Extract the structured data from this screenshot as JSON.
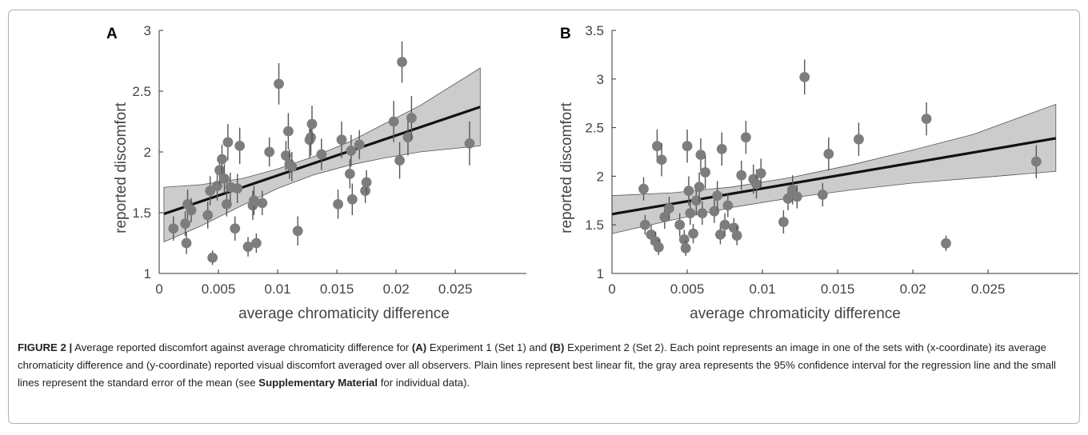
{
  "caption": {
    "label": "FIGURE 2 |",
    "p1": " Average reported discomfort against average chromaticity difference for ",
    "b1": "(A)",
    "p2": " Experiment 1 (Set 1) and ",
    "b2": "(B)",
    "p3": " Experiment 2 (Set 2). Each point represents an image in one of the sets with (x-coordinate) its average chromaticity difference and (y-coordinate) reported visual discomfort averaged over all observers. Plain lines represent best linear fit, the gray area represents the 95% confidence interval for the regression line and the small lines represent the standard error of the mean (see ",
    "b3": "Supplementary Material",
    "p4": " for individual data)."
  },
  "colors": {
    "point": "#7d7d7d",
    "band": "#cccccc",
    "fit": "#111111",
    "errbar": "#555555",
    "frame": "#9fb7c4"
  },
  "chart_data": [
    {
      "panel_label": "A",
      "type": "scatter",
      "xlabel": "average chromaticity difference",
      "ylabel": "reported discomfort",
      "xlim": [
        0,
        0.031
      ],
      "ylim": [
        1,
        3
      ],
      "xticks": [
        "0",
        "0.005",
        "0.01",
        "0.015",
        "0.02",
        "0.025"
      ],
      "xtick_values": [
        0,
        0.005,
        0.01,
        0.015,
        0.02,
        0.025
      ],
      "yticks": [
        "1",
        "1.5",
        "2",
        "2.5",
        "3"
      ],
      "ytick_values": [
        1,
        1.5,
        2,
        2.5,
        3
      ],
      "fit": {
        "x": [
          0.0004,
          0.0271
        ],
        "y": [
          1.49,
          2.37
        ]
      },
      "ci_band": {
        "x": [
          0.0004,
          0.0035,
          0.007,
          0.01,
          0.013,
          0.016,
          0.019,
          0.022,
          0.0271
        ],
        "lower": [
          1.26,
          1.39,
          1.56,
          1.7,
          1.81,
          1.89,
          1.95,
          2.0,
          2.05
        ],
        "upper": [
          1.71,
          1.73,
          1.78,
          1.86,
          1.96,
          2.08,
          2.23,
          2.38,
          2.69
        ]
      },
      "points": {
        "x": [
          0.0012,
          0.0022,
          0.0023,
          0.0024,
          0.0027,
          0.0041,
          0.0043,
          0.0045,
          0.0049,
          0.0051,
          0.0053,
          0.0055,
          0.0057,
          0.0058,
          0.006,
          0.0064,
          0.0066,
          0.0068,
          0.0075,
          0.0079,
          0.008,
          0.0082,
          0.0087,
          0.0093,
          0.0101,
          0.0107,
          0.0109,
          0.011,
          0.0112,
          0.0117,
          0.0127,
          0.0128,
          0.0129,
          0.0137,
          0.0151,
          0.0154,
          0.0161,
          0.0162,
          0.0163,
          0.0169,
          0.0174,
          0.0175,
          0.0198,
          0.0203,
          0.0205,
          0.021,
          0.0213,
          0.0262
        ],
        "y": [
          1.37,
          1.41,
          1.25,
          1.57,
          1.52,
          1.48,
          1.68,
          1.13,
          1.72,
          1.85,
          1.94,
          1.78,
          1.57,
          2.08,
          1.71,
          1.37,
          1.7,
          2.05,
          1.22,
          1.56,
          1.6,
          1.25,
          1.58,
          2.0,
          2.56,
          1.97,
          2.17,
          1.9,
          1.88,
          1.35,
          2.1,
          2.12,
          2.23,
          1.98,
          1.57,
          2.1,
          1.82,
          2.01,
          1.61,
          2.06,
          1.68,
          1.75,
          2.25,
          1.93,
          2.74,
          2.12,
          2.28,
          2.07
        ],
        "err": [
          0.1,
          0.1,
          0.09,
          0.12,
          0.1,
          0.11,
          0.12,
          0.06,
          0.12,
          0.12,
          0.12,
          0.12,
          0.1,
          0.15,
          0.12,
          0.1,
          0.12,
          0.15,
          0.08,
          0.12,
          0.12,
          0.08,
          0.1,
          0.12,
          0.17,
          0.12,
          0.15,
          0.12,
          0.12,
          0.12,
          0.15,
          0.15,
          0.15,
          0.13,
          0.12,
          0.15,
          0.12,
          0.13,
          0.13,
          0.12,
          0.1,
          0.1,
          0.17,
          0.15,
          0.17,
          0.15,
          0.18,
          0.18
        ]
      }
    },
    {
      "panel_label": "B",
      "type": "scatter",
      "xlabel": "average chromaticity difference",
      "ylabel": "reported discomfort",
      "xlim": [
        0,
        0.031
      ],
      "ylim": [
        1,
        3.5
      ],
      "xticks": [
        "0",
        "0.005",
        "0.01",
        "0.015",
        "0.02",
        "0.025"
      ],
      "xtick_values": [
        0,
        0.005,
        0.01,
        0.015,
        0.02,
        0.025
      ],
      "yticks": [
        "1",
        "1.5",
        "2",
        "2.5",
        "3",
        "3.5"
      ],
      "ytick_values": [
        1,
        1.5,
        2,
        2.5,
        3,
        3.5
      ],
      "fit": {
        "x": [
          0,
          0.0295
        ],
        "y": [
          1.61,
          2.39
        ]
      },
      "ci_band": {
        "x": [
          0,
          0.004,
          0.008,
          0.012,
          0.016,
          0.02,
          0.024,
          0.0295
        ],
        "lower": [
          1.41,
          1.55,
          1.68,
          1.78,
          1.86,
          1.93,
          1.98,
          2.05
        ],
        "upper": [
          1.8,
          1.83,
          1.89,
          1.99,
          2.12,
          2.27,
          2.43,
          2.74
        ]
      },
      "points": {
        "x": [
          0.0021,
          0.0022,
          0.0026,
          0.0029,
          0.003,
          0.0031,
          0.0033,
          0.0035,
          0.0038,
          0.0045,
          0.0048,
          0.0049,
          0.005,
          0.0051,
          0.0052,
          0.0054,
          0.0056,
          0.0058,
          0.0059,
          0.006,
          0.0062,
          0.0068,
          0.007,
          0.0072,
          0.0073,
          0.0075,
          0.0077,
          0.0081,
          0.0083,
          0.0086,
          0.0089,
          0.0094,
          0.0096,
          0.0099,
          0.0114,
          0.0117,
          0.012,
          0.0123,
          0.0128,
          0.014,
          0.0144,
          0.0164,
          0.0209,
          0.0222,
          0.0282
        ],
        "y": [
          1.87,
          1.5,
          1.4,
          1.33,
          2.31,
          1.27,
          2.17,
          1.58,
          1.67,
          1.5,
          1.35,
          1.26,
          2.31,
          1.85,
          1.62,
          1.41,
          1.75,
          1.89,
          2.22,
          1.62,
          2.04,
          1.64,
          1.8,
          1.4,
          2.28,
          1.5,
          1.7,
          1.47,
          1.39,
          2.01,
          2.4,
          1.97,
          1.92,
          2.03,
          1.53,
          1.77,
          1.86,
          1.79,
          3.02,
          1.81,
          2.23,
          2.38,
          2.59,
          1.31,
          2.15
        ],
        "err": [
          0.12,
          0.1,
          0.1,
          0.1,
          0.17,
          0.08,
          0.17,
          0.12,
          0.12,
          0.12,
          0.1,
          0.08,
          0.17,
          0.15,
          0.12,
          0.1,
          0.15,
          0.15,
          0.17,
          0.12,
          0.17,
          0.12,
          0.15,
          0.1,
          0.17,
          0.12,
          0.12,
          0.1,
          0.1,
          0.15,
          0.17,
          0.15,
          0.15,
          0.15,
          0.12,
          0.12,
          0.15,
          0.12,
          0.18,
          0.12,
          0.17,
          0.17,
          0.17,
          0.08,
          0.17
        ]
      }
    }
  ]
}
